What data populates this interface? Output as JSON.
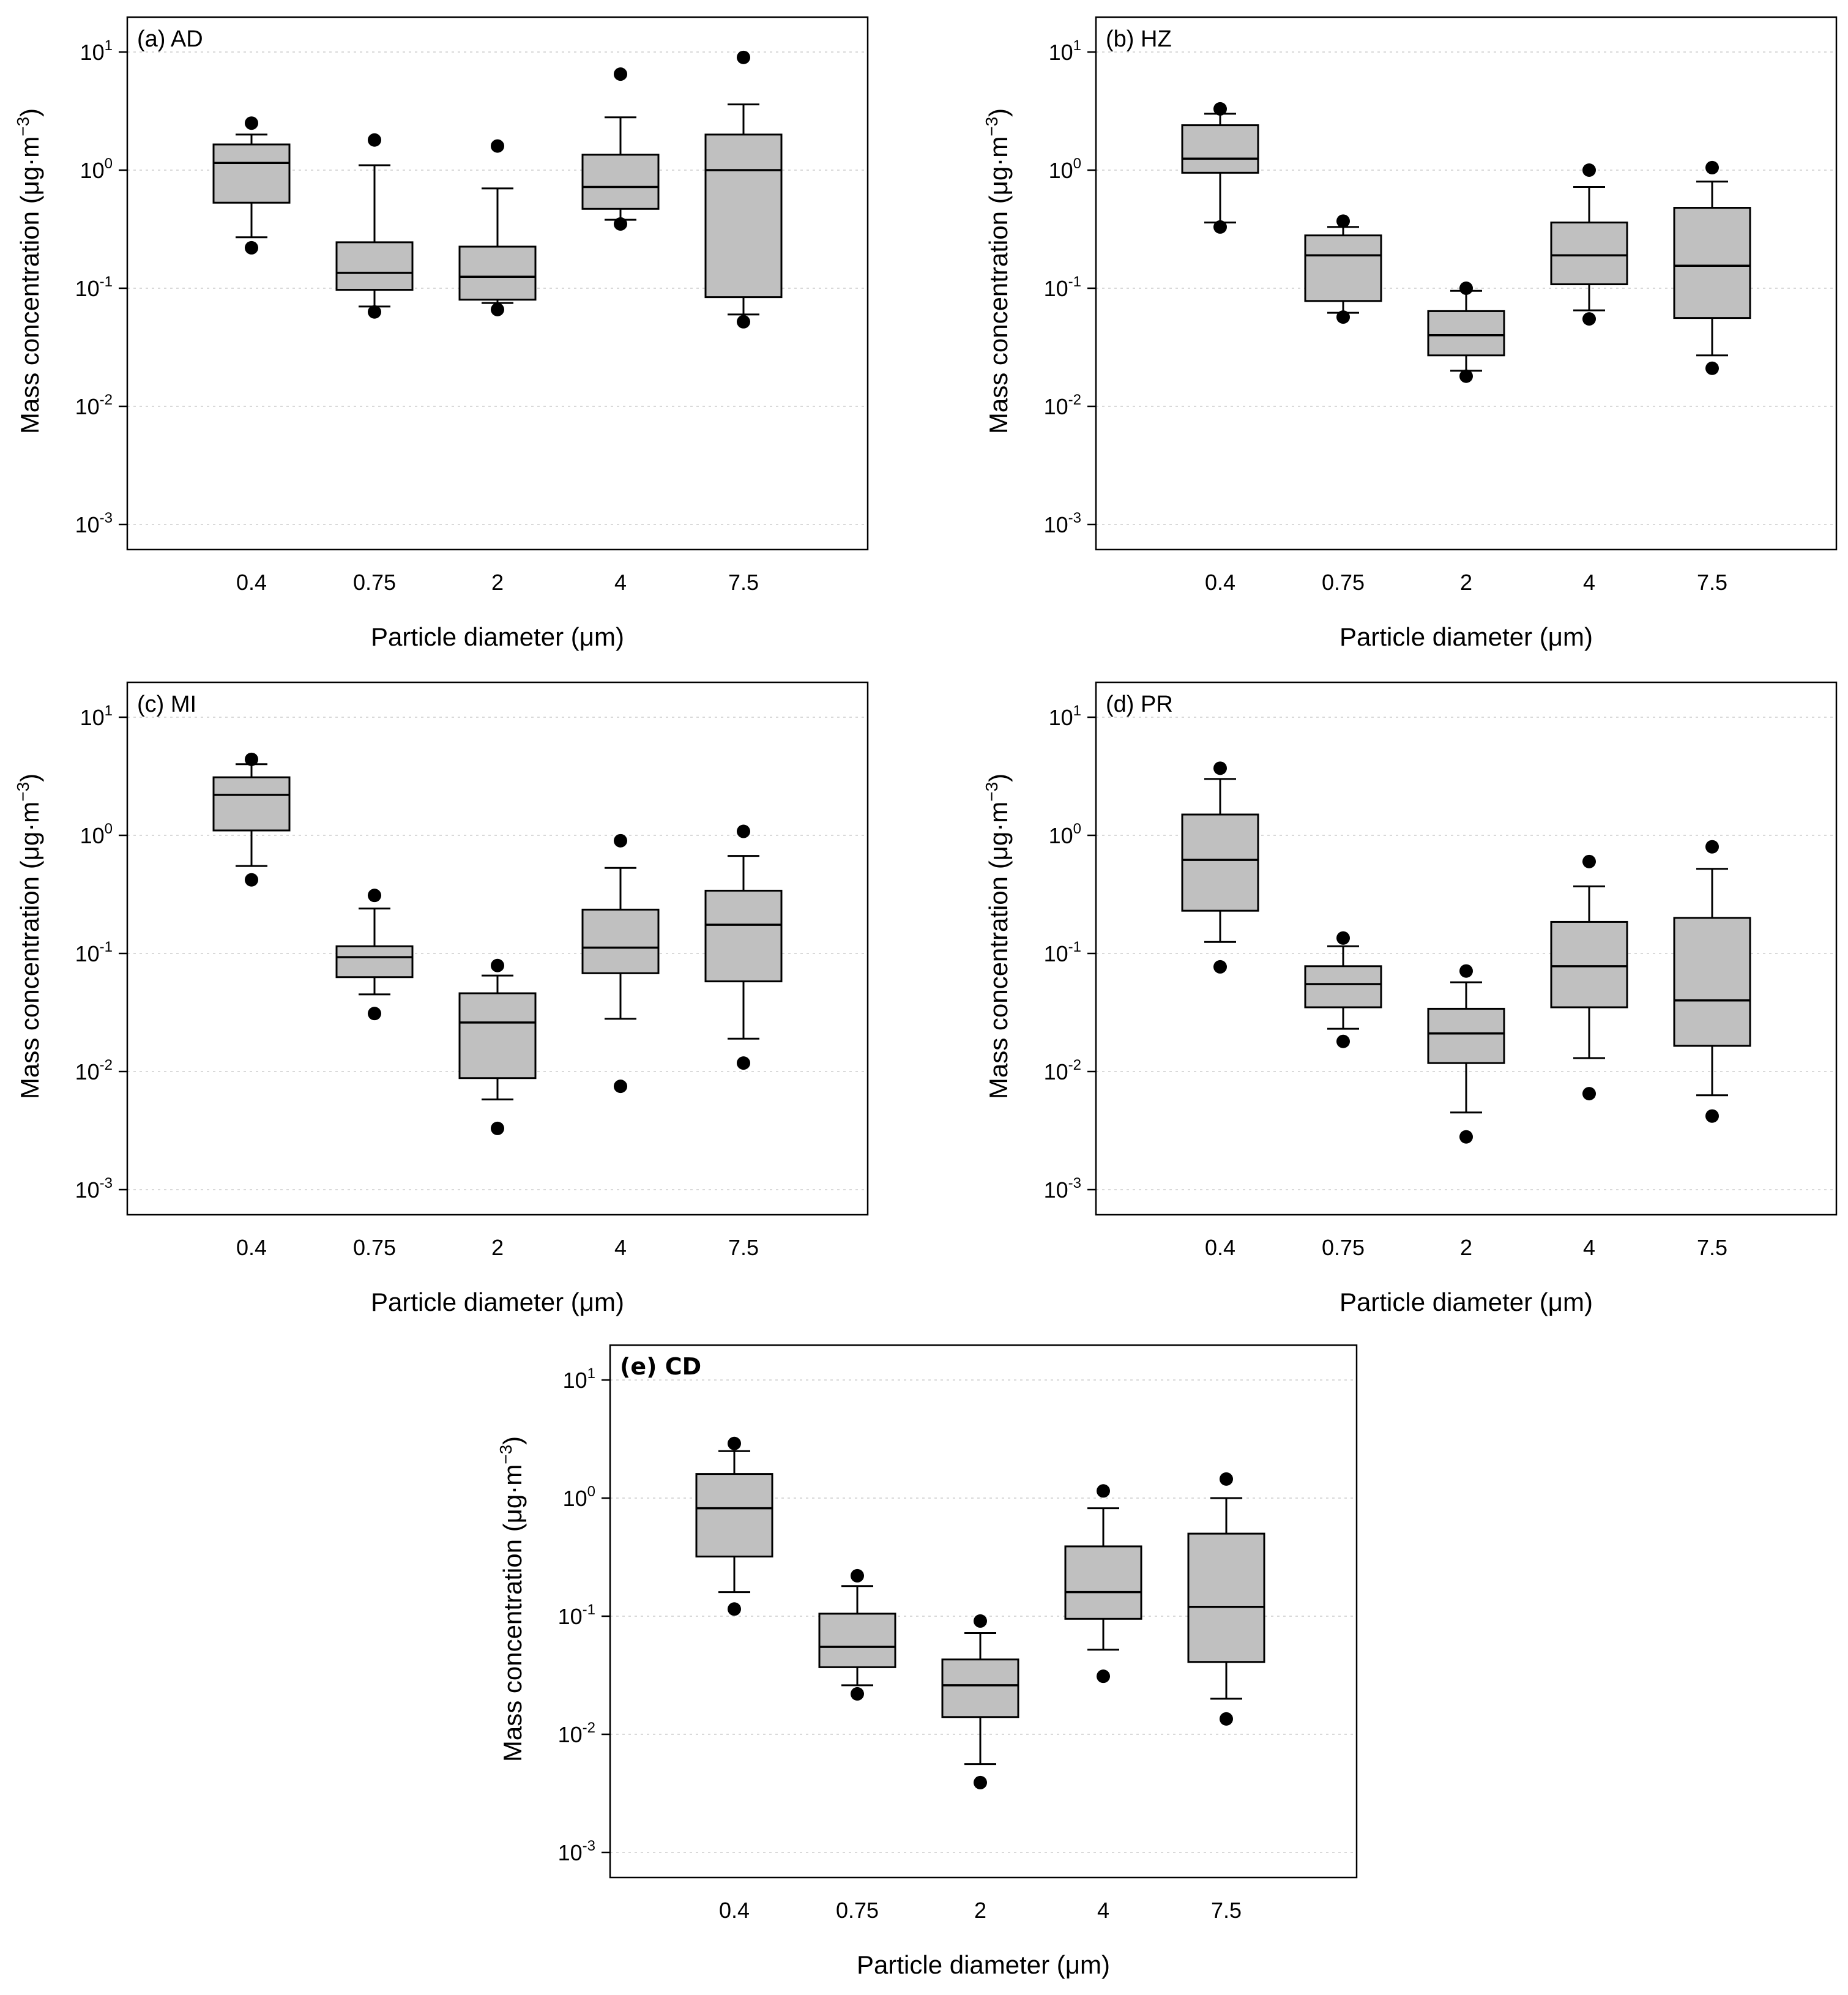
{
  "chart_data": [
    {
      "type": "box",
      "panel_label": "(a) AD",
      "label_bold": false,
      "xlabel": "Particle diameter (μm)",
      "ylabel": "Mass concentration (μg·m⁻³)",
      "ylabel_parts": {
        "main": "Mass concentration (μg·m",
        "sup": "−3",
        "end": ")"
      },
      "yscale": "log",
      "ylim": [
        0.0005,
        20
      ],
      "yticks": [
        {
          "base": "10",
          "exp": "1"
        },
        {
          "base": "10",
          "exp": "0"
        },
        {
          "base": "10",
          "exp": "-1"
        },
        {
          "base": "10",
          "exp": "-2"
        },
        {
          "base": "10",
          "exp": "-3"
        }
      ],
      "grid": true,
      "categories": [
        "0.4",
        "0.75",
        "2",
        "4",
        "7.5"
      ],
      "boxes": [
        {
          "min": 0.27,
          "q1": 0.53,
          "median": 1.15,
          "q3": 1.65,
          "max": 2.0,
          "outliers": [
            2.5,
            0.22
          ]
        },
        {
          "min": 0.07,
          "q1": 0.097,
          "median": 0.135,
          "q3": 0.245,
          "max": 1.1,
          "outliers": [
            1.8,
            0.063
          ]
        },
        {
          "min": 0.075,
          "q1": 0.08,
          "median": 0.125,
          "q3": 0.225,
          "max": 0.7,
          "outliers": [
            1.6,
            0.066
          ]
        },
        {
          "min": 0.38,
          "q1": 0.47,
          "median": 0.72,
          "q3": 1.35,
          "max": 2.8,
          "outliers": [
            6.5,
            0.35
          ]
        },
        {
          "min": 0.06,
          "q1": 0.084,
          "median": 1.0,
          "q3": 2.0,
          "max": 3.6,
          "outliers": [
            9.0,
            0.052
          ]
        }
      ]
    },
    {
      "type": "box",
      "panel_label": "(b) HZ",
      "label_bold": false,
      "xlabel": "Particle diameter (μm)",
      "ylabel": "Mass concentration (μg·m⁻³)",
      "ylabel_parts": {
        "main": "Mass concentration (μg·m",
        "sup": "−3",
        "end": ")"
      },
      "yscale": "log",
      "ylim": [
        0.0005,
        20
      ],
      "yticks": [
        {
          "base": "10",
          "exp": "1"
        },
        {
          "base": "10",
          "exp": "0"
        },
        {
          "base": "10",
          "exp": "-1"
        },
        {
          "base": "10",
          "exp": "-2"
        },
        {
          "base": "10",
          "exp": "-3"
        }
      ],
      "grid": true,
      "categories": [
        "0.4",
        "0.75",
        "2",
        "4",
        "7.5"
      ],
      "boxes": [
        {
          "min": 0.36,
          "q1": 0.95,
          "median": 1.25,
          "q3": 2.4,
          "max": 3.0,
          "outliers": [
            3.3,
            0.33
          ]
        },
        {
          "min": 0.062,
          "q1": 0.078,
          "median": 0.19,
          "q3": 0.28,
          "max": 0.33,
          "outliers": [
            0.37,
            0.057
          ]
        },
        {
          "min": 0.02,
          "q1": 0.027,
          "median": 0.04,
          "q3": 0.064,
          "max": 0.095,
          "outliers": [
            0.1,
            0.018
          ]
        },
        {
          "min": 0.065,
          "q1": 0.108,
          "median": 0.19,
          "q3": 0.36,
          "max": 0.72,
          "outliers": [
            1.0,
            0.055
          ]
        },
        {
          "min": 0.027,
          "q1": 0.056,
          "median": 0.155,
          "q3": 0.48,
          "max": 0.8,
          "outliers": [
            1.05,
            0.021
          ]
        }
      ]
    },
    {
      "type": "box",
      "panel_label": "(c) MI",
      "label_bold": false,
      "xlabel": "Particle diameter (μm)",
      "ylabel": "Mass concentration (μg·m⁻³)",
      "ylabel_parts": {
        "main": "Mass concentration (μg·m",
        "sup": "−3",
        "end": ")"
      },
      "yscale": "log",
      "ylim": [
        0.0005,
        20
      ],
      "yticks": [
        {
          "base": "10",
          "exp": "1"
        },
        {
          "base": "10",
          "exp": "0"
        },
        {
          "base": "10",
          "exp": "-1"
        },
        {
          "base": "10",
          "exp": "-2"
        },
        {
          "base": "10",
          "exp": "-3"
        }
      ],
      "grid": true,
      "categories": [
        "0.4",
        "0.75",
        "2",
        "4",
        "7.5"
      ],
      "boxes": [
        {
          "min": 0.55,
          "q1": 1.1,
          "median": 2.2,
          "q3": 3.1,
          "max": 4.0,
          "outliers": [
            4.4,
            0.42
          ]
        },
        {
          "min": 0.045,
          "q1": 0.063,
          "median": 0.093,
          "q3": 0.115,
          "max": 0.24,
          "outliers": [
            0.31,
            0.031
          ]
        },
        {
          "min": 0.0058,
          "q1": 0.0088,
          "median": 0.026,
          "q3": 0.046,
          "max": 0.065,
          "outliers": [
            0.079,
            0.0033
          ]
        },
        {
          "min": 0.028,
          "q1": 0.068,
          "median": 0.112,
          "q3": 0.235,
          "max": 0.53,
          "outliers": [
            0.9,
            0.0075
          ]
        },
        {
          "min": 0.019,
          "q1": 0.058,
          "median": 0.175,
          "q3": 0.34,
          "max": 0.67,
          "outliers": [
            1.08,
            0.0118
          ]
        }
      ]
    },
    {
      "type": "box",
      "panel_label": "(d) PR",
      "label_bold": false,
      "xlabel": "Particle diameter (μm)",
      "ylabel": "Mass concentration (μg·m⁻³)",
      "ylabel_parts": {
        "main": "Mass concentration (μg·m",
        "sup": "−3",
        "end": ")"
      },
      "yscale": "log",
      "ylim": [
        0.0005,
        20
      ],
      "yticks": [
        {
          "base": "10",
          "exp": "1"
        },
        {
          "base": "10",
          "exp": "0"
        },
        {
          "base": "10",
          "exp": "-1"
        },
        {
          "base": "10",
          "exp": "-2"
        },
        {
          "base": "10",
          "exp": "-3"
        }
      ],
      "grid": true,
      "categories": [
        "0.4",
        "0.75",
        "2",
        "4",
        "7.5"
      ],
      "boxes": [
        {
          "min": 0.125,
          "q1": 0.23,
          "median": 0.62,
          "q3": 1.5,
          "max": 3.0,
          "outliers": [
            3.7,
            0.077
          ]
        },
        {
          "min": 0.023,
          "q1": 0.035,
          "median": 0.055,
          "q3": 0.078,
          "max": 0.115,
          "outliers": [
            0.135,
            0.018
          ]
        },
        {
          "min": 0.0045,
          "q1": 0.0118,
          "median": 0.021,
          "q3": 0.034,
          "max": 0.057,
          "outliers": [
            0.071,
            0.0028
          ]
        },
        {
          "min": 0.013,
          "q1": 0.035,
          "median": 0.078,
          "q3": 0.185,
          "max": 0.37,
          "outliers": [
            0.6,
            0.0065
          ]
        },
        {
          "min": 0.0063,
          "q1": 0.0165,
          "median": 0.04,
          "q3": 0.2,
          "max": 0.52,
          "outliers": [
            0.8,
            0.0042
          ]
        }
      ]
    },
    {
      "type": "box",
      "panel_label": "(e) CD",
      "label_bold": true,
      "xlabel": "Particle diameter (μm)",
      "ylabel": "Mass concentration (μg·m⁻³)",
      "ylabel_parts": {
        "main": "Mass concentration (μg·m",
        "sup": "−3",
        "end": ")"
      },
      "yscale": "log",
      "ylim": [
        0.0005,
        20
      ],
      "yticks": [
        {
          "base": "10",
          "exp": "1"
        },
        {
          "base": "10",
          "exp": "0"
        },
        {
          "base": "10",
          "exp": "-1"
        },
        {
          "base": "10",
          "exp": "-2"
        },
        {
          "base": "10",
          "exp": "-3"
        }
      ],
      "grid": true,
      "categories": [
        "0.4",
        "0.75",
        "2",
        "4",
        "7.5"
      ],
      "boxes": [
        {
          "min": 0.16,
          "q1": 0.32,
          "median": 0.82,
          "q3": 1.6,
          "max": 2.5,
          "outliers": [
            2.9,
            0.115
          ]
        },
        {
          "min": 0.026,
          "q1": 0.037,
          "median": 0.055,
          "q3": 0.105,
          "max": 0.18,
          "outliers": [
            0.22,
            0.022
          ]
        },
        {
          "min": 0.0056,
          "q1": 0.014,
          "median": 0.026,
          "q3": 0.043,
          "max": 0.072,
          "outliers": [
            0.091,
            0.0039
          ]
        },
        {
          "min": 0.052,
          "q1": 0.095,
          "median": 0.16,
          "q3": 0.39,
          "max": 0.82,
          "outliers": [
            1.15,
            0.031
          ]
        },
        {
          "min": 0.02,
          "q1": 0.041,
          "median": 0.12,
          "q3": 0.5,
          "max": 1.0,
          "outliers": [
            1.45,
            0.0135
          ]
        }
      ]
    }
  ],
  "colors": {
    "box_fill": "#c0c0c0",
    "line": "#000000",
    "grid": "#d9d9d9"
  }
}
